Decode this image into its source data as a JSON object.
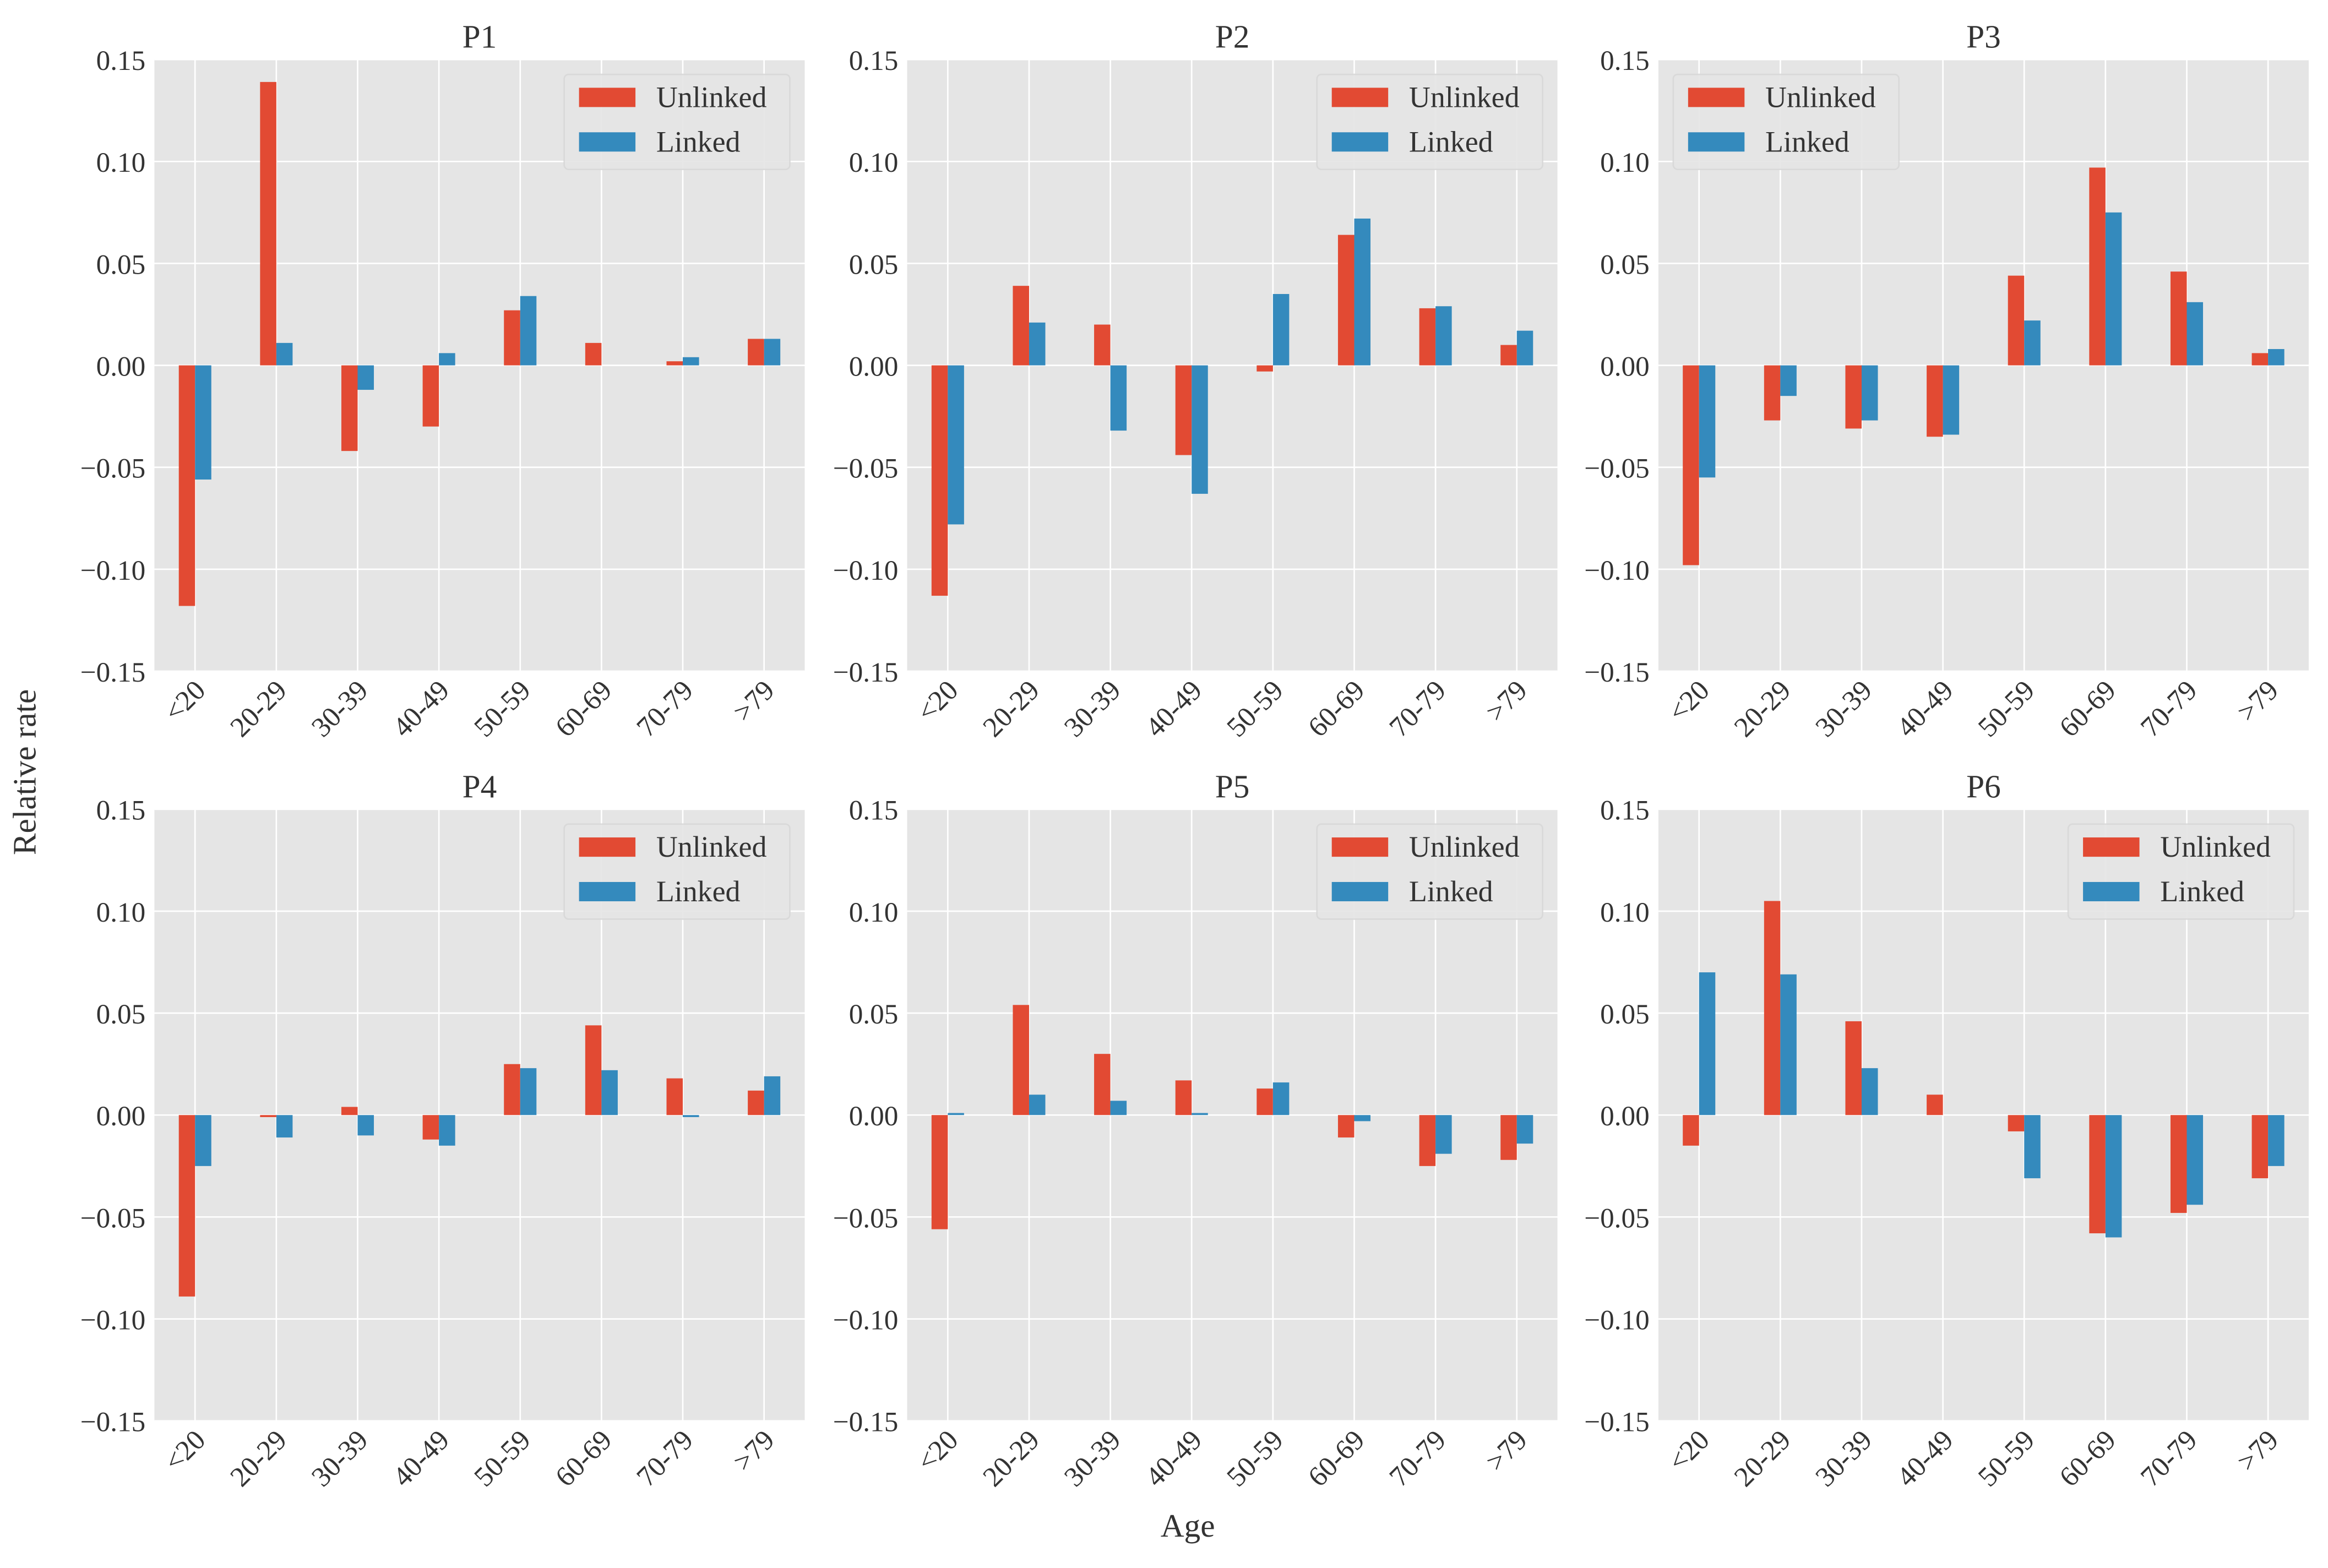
{
  "figure": {
    "xlabel": "Age",
    "ylabel": "Relative rate"
  },
  "chart_data": [
    {
      "type": "bar",
      "title": "P1",
      "categories": [
        "<20",
        "20-29",
        "30-39",
        "40-49",
        "50-59",
        "60-69",
        "70-79",
        ">79"
      ],
      "series": [
        {
          "name": "Unlinked",
          "color": "#E24A33",
          "values": [
            -0.118,
            0.139,
            -0.042,
            -0.03,
            0.027,
            0.011,
            0.002,
            0.013
          ]
        },
        {
          "name": "Linked",
          "color": "#348ABD",
          "values": [
            -0.056,
            0.011,
            -0.012,
            0.006,
            0.034,
            0.0,
            0.004,
            0.013
          ]
        }
      ],
      "ylim": [
        -0.15,
        0.15
      ],
      "yticks": [
        {
          "value": -0.15,
          "label": "−0.15"
        },
        {
          "value": -0.1,
          "label": "−0.10"
        },
        {
          "value": -0.05,
          "label": "−0.05"
        },
        {
          "value": 0,
          "label": "0.00"
        },
        0.05,
        {
          "value": 0.1,
          "label": "0.10"
        },
        0.15
      ],
      "grid": true,
      "legend": "upper right"
    },
    {
      "type": "bar",
      "title": "P2",
      "categories": [
        "<20",
        "20-29",
        "30-39",
        "40-49",
        "50-59",
        "60-69",
        "70-79",
        ">79"
      ],
      "series": [
        {
          "name": "Unlinked",
          "color": "#E24A33",
          "values": [
            -0.113,
            0.039,
            0.02,
            -0.044,
            -0.003,
            0.064,
            0.028,
            0.01
          ]
        },
        {
          "name": "Linked",
          "color": "#348ABD",
          "values": [
            -0.078,
            0.021,
            -0.032,
            -0.063,
            0.035,
            0.072,
            0.029,
            0.017
          ]
        }
      ],
      "ylim": [
        -0.15,
        0.15
      ],
      "yticks": [
        {
          "value": -0.15,
          "label": "−0.15"
        },
        {
          "value": -0.1,
          "label": "−0.10"
        },
        {
          "value": -0.05,
          "label": "−0.05"
        },
        {
          "value": 0,
          "label": "0.00"
        },
        0.05,
        {
          "value": 0.1,
          "label": "0.10"
        },
        0.15
      ],
      "grid": true,
      "legend": "upper right"
    },
    {
      "type": "bar",
      "title": "P3",
      "categories": [
        "<20",
        "20-29",
        "30-39",
        "40-49",
        "50-59",
        "60-69",
        "70-79",
        ">79"
      ],
      "series": [
        {
          "name": "Unlinked",
          "color": "#E24A33",
          "values": [
            -0.098,
            -0.027,
            -0.031,
            -0.035,
            0.044,
            0.097,
            0.046,
            0.006
          ]
        },
        {
          "name": "Linked",
          "color": "#348ABD",
          "values": [
            -0.055,
            -0.015,
            -0.027,
            -0.034,
            0.022,
            0.075,
            0.031,
            0.008
          ]
        }
      ],
      "ylim": [
        -0.15,
        0.15
      ],
      "yticks": [
        {
          "value": -0.15,
          "label": "−0.15"
        },
        {
          "value": -0.1,
          "label": "−0.10"
        },
        {
          "value": -0.05,
          "label": "−0.05"
        },
        {
          "value": 0,
          "label": "0.00"
        },
        0.05,
        {
          "value": 0.1,
          "label": "0.10"
        },
        0.15
      ],
      "grid": true,
      "legend": "upper left"
    },
    {
      "type": "bar",
      "title": "P4",
      "categories": [
        "<20",
        "20-29",
        "30-39",
        "40-49",
        "50-59",
        "60-69",
        "70-79",
        ">79"
      ],
      "series": [
        {
          "name": "Unlinked",
          "color": "#E24A33",
          "values": [
            -0.089,
            -0.001,
            0.004,
            -0.012,
            0.025,
            0.044,
            0.018,
            0.012
          ]
        },
        {
          "name": "Linked",
          "color": "#348ABD",
          "values": [
            -0.025,
            -0.011,
            -0.01,
            -0.015,
            0.023,
            0.022,
            -0.001,
            0.019
          ]
        }
      ],
      "ylim": [
        -0.15,
        0.15
      ],
      "yticks": [
        {
          "value": -0.15,
          "label": "−0.15"
        },
        {
          "value": -0.1,
          "label": "−0.10"
        },
        {
          "value": -0.05,
          "label": "−0.05"
        },
        {
          "value": 0,
          "label": "0.00"
        },
        0.05,
        {
          "value": 0.1,
          "label": "0.10"
        },
        0.15
      ],
      "grid": true,
      "legend": "upper right"
    },
    {
      "type": "bar",
      "title": "P5",
      "categories": [
        "<20",
        "20-29",
        "30-39",
        "40-49",
        "50-59",
        "60-69",
        "70-79",
        ">79"
      ],
      "series": [
        {
          "name": "Unlinked",
          "color": "#E24A33",
          "values": [
            -0.056,
            0.054,
            0.03,
            0.017,
            0.013,
            -0.011,
            -0.025,
            -0.022
          ]
        },
        {
          "name": "Linked",
          "color": "#348ABD",
          "values": [
            0.001,
            0.01,
            0.007,
            0.001,
            0.016,
            -0.003,
            -0.019,
            -0.014
          ]
        }
      ],
      "ylim": [
        -0.15,
        0.15
      ],
      "yticks": [
        {
          "value": -0.15,
          "label": "−0.15"
        },
        {
          "value": -0.1,
          "label": "−0.10"
        },
        {
          "value": -0.05,
          "label": "−0.05"
        },
        {
          "value": 0,
          "label": "0.00"
        },
        0.05,
        {
          "value": 0.1,
          "label": "0.10"
        },
        0.15
      ],
      "grid": true,
      "legend": "upper right"
    },
    {
      "type": "bar",
      "title": "P6",
      "categories": [
        "<20",
        "20-29",
        "30-39",
        "40-49",
        "50-59",
        "60-69",
        "70-79",
        ">79"
      ],
      "series": [
        {
          "name": "Unlinked",
          "color": "#E24A33",
          "values": [
            -0.015,
            0.105,
            0.046,
            0.01,
            -0.008,
            -0.058,
            -0.048,
            -0.031
          ]
        },
        {
          "name": "Linked",
          "color": "#348ABD",
          "values": [
            0.07,
            0.069,
            0.023,
            0.0,
            -0.031,
            -0.06,
            -0.044,
            -0.025
          ]
        }
      ],
      "ylim": [
        -0.15,
        0.15
      ],
      "yticks": [
        {
          "value": -0.15,
          "label": "−0.15"
        },
        {
          "value": -0.1,
          "label": "−0.10"
        },
        {
          "value": -0.05,
          "label": "−0.05"
        },
        {
          "value": 0,
          "label": "0.00"
        },
        0.05,
        {
          "value": 0.1,
          "label": "0.10"
        },
        0.15
      ],
      "grid": true,
      "legend": "upper right"
    }
  ]
}
